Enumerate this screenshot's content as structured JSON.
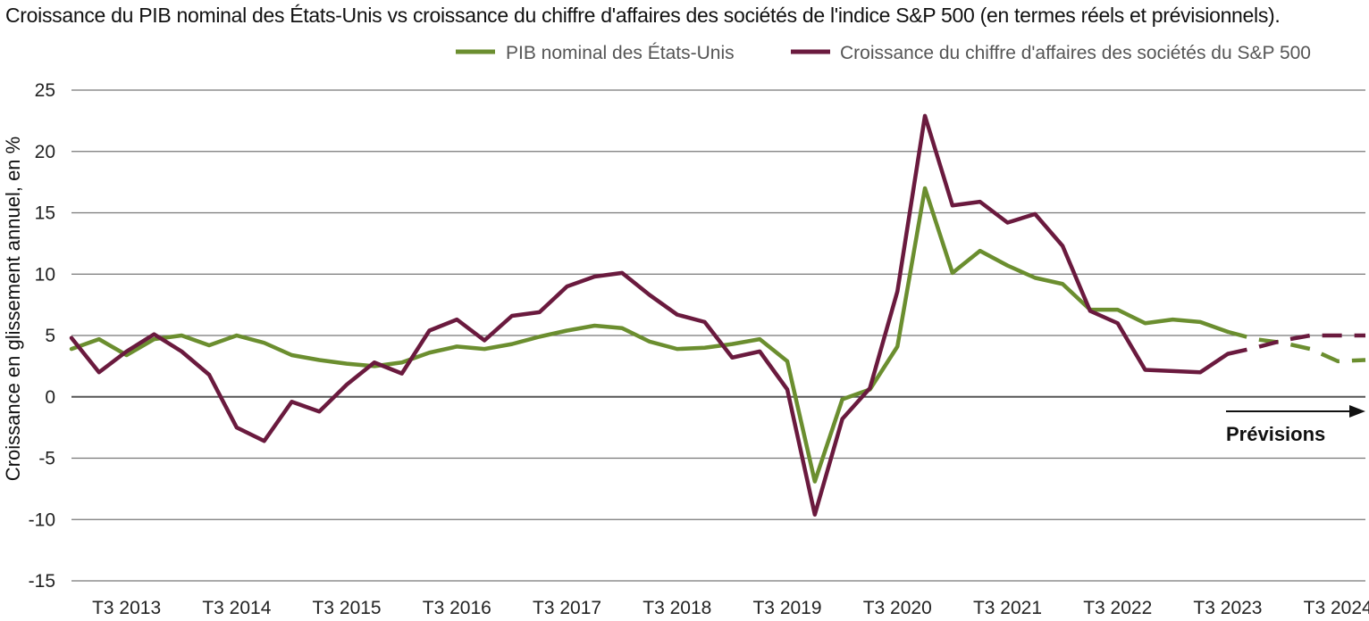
{
  "chart_data": {
    "type": "line",
    "title": "Croissance du PIB nominal des États-Unis vs croissance du chiffre d'affaires des sociétés de l'indice S&P 500 (en termes réels et prévisionnels).",
    "ylabel": "Croissance en glissement annuel, en %",
    "xlabel": "",
    "ylim": [
      -15,
      25
    ],
    "yticks": [
      25,
      20,
      15,
      10,
      5,
      0,
      -5,
      -10,
      -15
    ],
    "x_tick_labels": [
      "T3 2013",
      "T3 2014",
      "T3 2015",
      "T3 2016",
      "T3 2017",
      "T3 2018",
      "T3 2019",
      "T3 2020",
      "T3 2021",
      "T3 2022",
      "T3 2023",
      "T3 2024"
    ],
    "x": [
      "T1 2013",
      "T2 2013",
      "T3 2013",
      "T4 2013",
      "T1 2014",
      "T2 2014",
      "T3 2014",
      "T4 2014",
      "T1 2015",
      "T2 2015",
      "T3 2015",
      "T4 2015",
      "T1 2016",
      "T2 2016",
      "T3 2016",
      "T4 2016",
      "T1 2017",
      "T2 2017",
      "T3 2017",
      "T4 2017",
      "T1 2018",
      "T2 2018",
      "T3 2018",
      "T4 2018",
      "T1 2019",
      "T2 2019",
      "T3 2019",
      "T4 2019",
      "T1 2020",
      "T2 2020",
      "T3 2020",
      "T4 2020",
      "T1 2021",
      "T2 2021",
      "T3 2021",
      "T4 2021",
      "T1 2022",
      "T2 2022",
      "T3 2022",
      "T4 2022",
      "T1 2023",
      "T2 2023",
      "T3 2023",
      "T4 2023",
      "T1 2024",
      "T2 2024",
      "T3 2024",
      "T4 2024"
    ],
    "forecast_start": "T3 2023",
    "forecast_label": "Prévisions",
    "legend_position": "top-right",
    "grid": true,
    "series": [
      {
        "name": "PIB nominal des États-Unis",
        "color": "#6b8e2f",
        "values": [
          3.9,
          4.7,
          3.4,
          4.7,
          5.0,
          4.2,
          5.0,
          4.4,
          3.4,
          3.0,
          2.7,
          2.5,
          2.8,
          3.6,
          4.1,
          3.9,
          4.3,
          4.9,
          5.4,
          5.8,
          5.6,
          4.5,
          3.9,
          4.0,
          4.3,
          4.7,
          2.9,
          -6.9,
          -0.2,
          0.6,
          4.1,
          17.0,
          10.1,
          11.9,
          10.7,
          9.7,
          9.2,
          7.1,
          7.1,
          6.0,
          6.3,
          6.1,
          5.3,
          4.7,
          4.4,
          3.9,
          2.9,
          3.0
        ]
      },
      {
        "name": "Croissance du chiffre d'affaires des sociétés du S&P 500",
        "color": "#6a1a3e",
        "values": [
          4.8,
          2.0,
          3.7,
          5.1,
          3.7,
          1.8,
          -2.5,
          -3.6,
          -0.4,
          -1.2,
          1.0,
          2.8,
          1.9,
          5.4,
          6.3,
          4.6,
          6.6,
          6.9,
          9.0,
          9.8,
          10.1,
          8.3,
          6.7,
          6.1,
          3.2,
          3.7,
          0.6,
          -9.6,
          -1.8,
          0.7,
          8.6,
          22.9,
          15.6,
          15.9,
          14.2,
          14.9,
          12.3,
          7.0,
          6.0,
          2.2,
          2.1,
          2.0,
          3.5,
          4.0,
          4.6,
          5.0,
          5.0,
          5.0
        ]
      }
    ]
  }
}
